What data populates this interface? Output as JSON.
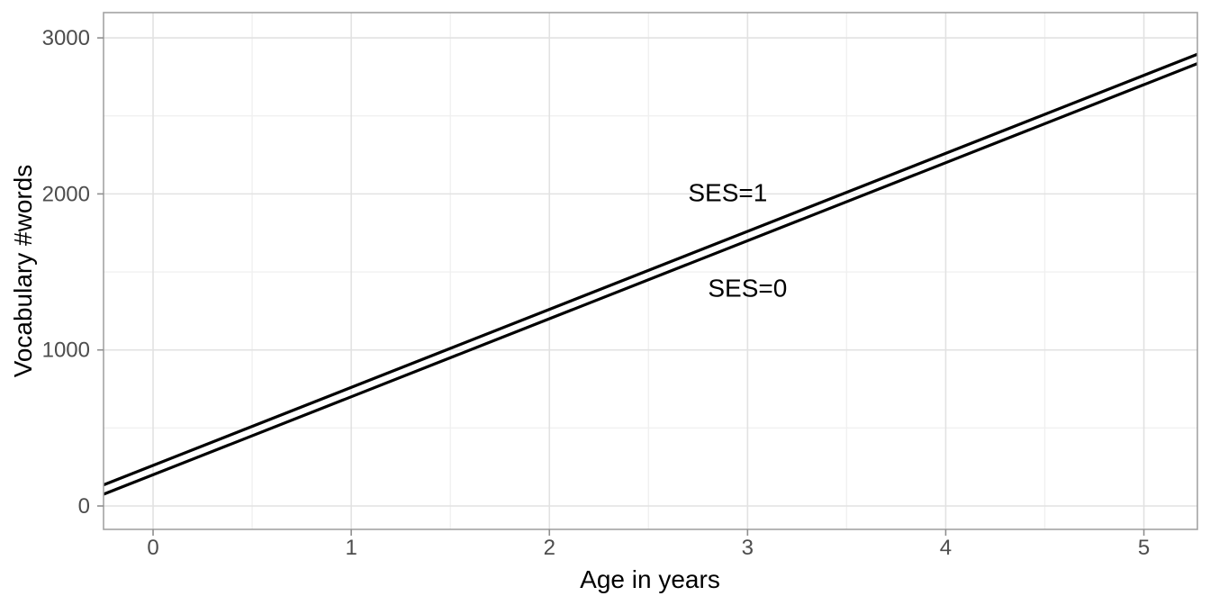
{
  "chart_data": {
    "type": "line",
    "title": "",
    "xlabel": "Age in years",
    "ylabel": "Vocabulary #words",
    "xlim": [
      -0.25,
      5.27
    ],
    "ylim": [
      -150,
      3162
    ],
    "x_major_ticks": [
      0,
      1,
      2,
      3,
      4,
      5
    ],
    "x_minor_gridlines": [
      0.5,
      1.5,
      2.5,
      3.5,
      4.5
    ],
    "y_major_ticks": [
      0,
      1000,
      2000,
      3000
    ],
    "y_minor_gridlines": [
      500,
      1500,
      2500
    ],
    "grid": true,
    "legend_position": "none",
    "series": [
      {
        "name": "SES=1",
        "model": "vocabulary = 260 + 500 * age",
        "intercept": 260,
        "slope": 500,
        "x": [
          -0.25,
          5.27
        ],
        "y": [
          135,
          2895
        ],
        "color": "#000000"
      },
      {
        "name": "SES=0",
        "model": "vocabulary = 200 + 500 * age",
        "intercept": 200,
        "slope": 500,
        "x": [
          -0.25,
          5.27
        ],
        "y": [
          75,
          2835
        ],
        "color": "#000000"
      }
    ],
    "annotations": [
      {
        "text": "SES=1",
        "x": 2.9,
        "y": 2010
      },
      {
        "text": "SES=0",
        "x": 3.0,
        "y": 1400
      }
    ],
    "style": {
      "line_color": "#000000",
      "line_width": 3.2,
      "panel_background": "#ffffff",
      "panel_border": "#a3a3a3",
      "grid_major": "#e2e2e2",
      "grid_minor": "#f0f0f0",
      "tick_mark": "#8f8f8f",
      "tick_label_color": "#4d4d4d",
      "axis_title_color": "#000000",
      "annotation_color": "#000000",
      "tick_label_size": 24,
      "axis_title_size": 28,
      "annotation_size": 28
    }
  }
}
